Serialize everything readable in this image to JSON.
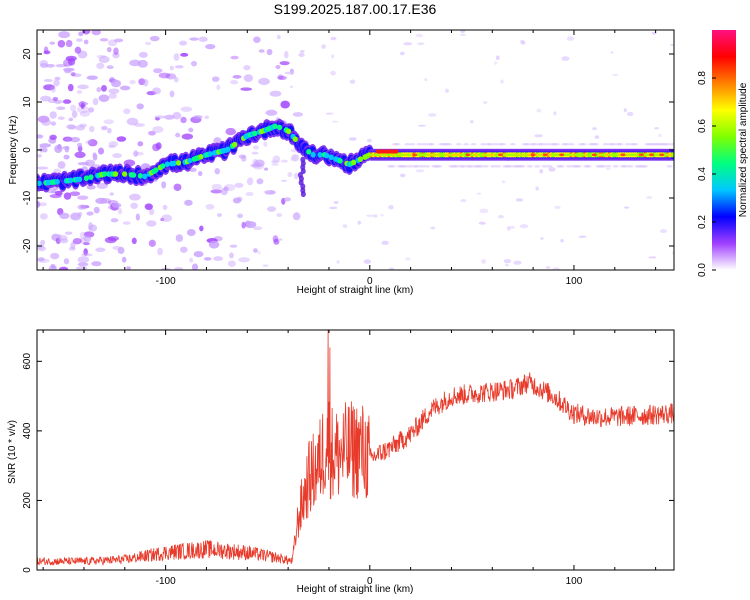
{
  "title": "S199.2025.187.00.17.E36",
  "chart_data": [
    {
      "type": "heatmap",
      "xlabel": "Height of straight line (km)",
      "ylabel": "Frequency (Hz)",
      "xlim": [
        -163,
        149
      ],
      "ylim": [
        -25,
        25
      ],
      "x_ticks": [
        -100,
        0,
        100
      ],
      "y_ticks": [
        -20,
        -10,
        0,
        10,
        20
      ],
      "colorbar": {
        "label": "Normalized spectral amplitude",
        "range": [
          0,
          1
        ],
        "ticks": [
          0.0,
          0.2,
          0.4,
          0.6,
          0.8
        ],
        "colors": [
          "#ffffff",
          "#a040ff",
          "#0000ff",
          "#00c8ff",
          "#00ff80",
          "#80ff00",
          "#ffff00",
          "#ff8000",
          "#ff0000",
          "#ff1080"
        ]
      },
      "ridge": {
        "x": [
          -163,
          -150,
          -140,
          -130,
          -120,
          -110,
          -100,
          -90,
          -80,
          -70,
          -60,
          -52,
          -46,
          -40,
          -34,
          -28,
          -22,
          -16,
          -10,
          -5,
          0,
          10,
          20,
          40,
          60,
          80,
          100,
          120,
          149
        ],
        "y": [
          -7,
          -6.5,
          -6,
          -5,
          -5,
          -5.5,
          -3,
          -2.5,
          -1,
          0,
          3,
          4,
          5,
          4,
          1,
          -1,
          -1,
          -2,
          -3,
          -2,
          -1,
          -1,
          -1,
          -1,
          -1,
          -1,
          -1,
          -1,
          -1
        ]
      }
    },
    {
      "type": "line",
      "xlabel": "Height of straight line (km)",
      "ylabel": "SNR (10 * v/v)",
      "xlim": [
        -163,
        149
      ],
      "ylim": [
        0,
        690
      ],
      "x_ticks": [
        -100,
        0,
        100
      ],
      "y_ticks": [
        0,
        200,
        400,
        600
      ],
      "color": "#e83a2a",
      "envelope": {
        "x": [
          -163,
          -140,
          -120,
          -100,
          -80,
          -60,
          -45,
          -38,
          -35,
          -30,
          -25,
          -21,
          -18,
          -12,
          -5,
          0,
          10,
          20,
          30,
          40,
          55,
          70,
          78,
          90,
          100,
          110,
          120,
          135,
          149
        ],
        "y": [
          25,
          25,
          30,
          50,
          60,
          50,
          35,
          25,
          150,
          260,
          300,
          380,
          330,
          340,
          350,
          320,
          350,
          390,
          460,
          500,
          510,
          520,
          540,
          500,
          450,
          440,
          440,
          445,
          450
        ]
      },
      "spikes": [
        {
          "x": -20.5,
          "y": 690
        },
        {
          "x": -19.5,
          "y": 640
        }
      ]
    }
  ]
}
